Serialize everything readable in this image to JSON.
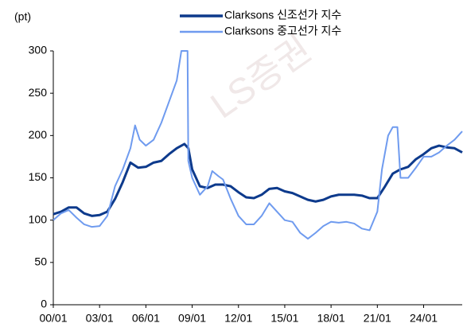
{
  "chart_data": {
    "type": "line",
    "y_label": "(pt)",
    "watermark": "LS증권",
    "xlim": [
      2000,
      2026.5
    ],
    "xticks": [
      {
        "value": 2000,
        "label": "00/01"
      },
      {
        "value": 2003,
        "label": "03/01"
      },
      {
        "value": 2006,
        "label": "06/01"
      },
      {
        "value": 2009,
        "label": "09/01"
      },
      {
        "value": 2012,
        "label": "12/01"
      },
      {
        "value": 2015,
        "label": "15/01"
      },
      {
        "value": 2018,
        "label": "18/01"
      },
      {
        "value": 2021,
        "label": "21/01"
      },
      {
        "value": 2024,
        "label": "24/01"
      }
    ],
    "ylim": [
      0,
      300
    ],
    "yticks": [
      0,
      50,
      100,
      150,
      200,
      250,
      300
    ],
    "series": [
      {
        "name": "Clarksons 신조선가 지수",
        "color": "#0d3a8c",
        "width": 3,
        "x": [
          2000,
          2000.5,
          2001,
          2001.5,
          2002,
          2002.5,
          2003,
          2003.5,
          2004,
          2004.5,
          2005,
          2005.5,
          2006,
          2006.5,
          2007,
          2007.5,
          2008,
          2008.5,
          2008.75,
          2009,
          2009.5,
          2010,
          2010.5,
          2011,
          2011.5,
          2012,
          2012.5,
          2013,
          2013.5,
          2014,
          2014.5,
          2015,
          2015.5,
          2016,
          2016.5,
          2017,
          2017.5,
          2018,
          2018.5,
          2019,
          2019.5,
          2020,
          2020.5,
          2021,
          2021.5,
          2022,
          2022.5,
          2023,
          2023.5,
          2024,
          2024.5,
          2025,
          2025.5,
          2026,
          2026.5
        ],
        "values": [
          107,
          110,
          115,
          115,
          108,
          105,
          106,
          110,
          125,
          145,
          168,
          162,
          163,
          168,
          170,
          178,
          185,
          190,
          185,
          160,
          140,
          138,
          142,
          142,
          140,
          133,
          127,
          126,
          130,
          137,
          138,
          134,
          132,
          128,
          124,
          122,
          124,
          128,
          130,
          130,
          130,
          129,
          126,
          126,
          140,
          155,
          160,
          163,
          172,
          178,
          185,
          188,
          186,
          185,
          180
        ]
      },
      {
        "name": "Clarksons 중고선가 지수",
        "color": "#6f9bef",
        "width": 2,
        "x": [
          2000,
          2000.5,
          2001,
          2001.5,
          2002,
          2002.5,
          2003,
          2003.5,
          2004,
          2004.5,
          2005,
          2005.3,
          2005.6,
          2006,
          2006.5,
          2007,
          2007.5,
          2008,
          2008.3,
          2008.7,
          2008.75,
          2009,
          2009.5,
          2010,
          2010.3,
          2010.7,
          2011,
          2011.5,
          2012,
          2012.5,
          2013,
          2013.5,
          2014,
          2014.5,
          2015,
          2015.5,
          2016,
          2016.5,
          2017,
          2017.5,
          2018,
          2018.5,
          2019,
          2019.5,
          2020,
          2020.5,
          2021,
          2021.3,
          2021.7,
          2022,
          2022.3,
          2022.5,
          2023,
          2023.5,
          2024,
          2024.5,
          2025,
          2025.5,
          2026,
          2026.5
        ],
        "values": [
          100,
          108,
          112,
          103,
          95,
          92,
          93,
          105,
          140,
          160,
          185,
          212,
          195,
          188,
          195,
          215,
          240,
          265,
          300,
          300,
          170,
          150,
          130,
          140,
          158,
          152,
          148,
          125,
          105,
          95,
          95,
          105,
          120,
          110,
          100,
          98,
          85,
          78,
          85,
          93,
          98,
          97,
          98,
          96,
          90,
          88,
          110,
          160,
          200,
          210,
          210,
          150,
          150,
          162,
          175,
          175,
          180,
          188,
          195,
          205
        ]
      }
    ]
  }
}
